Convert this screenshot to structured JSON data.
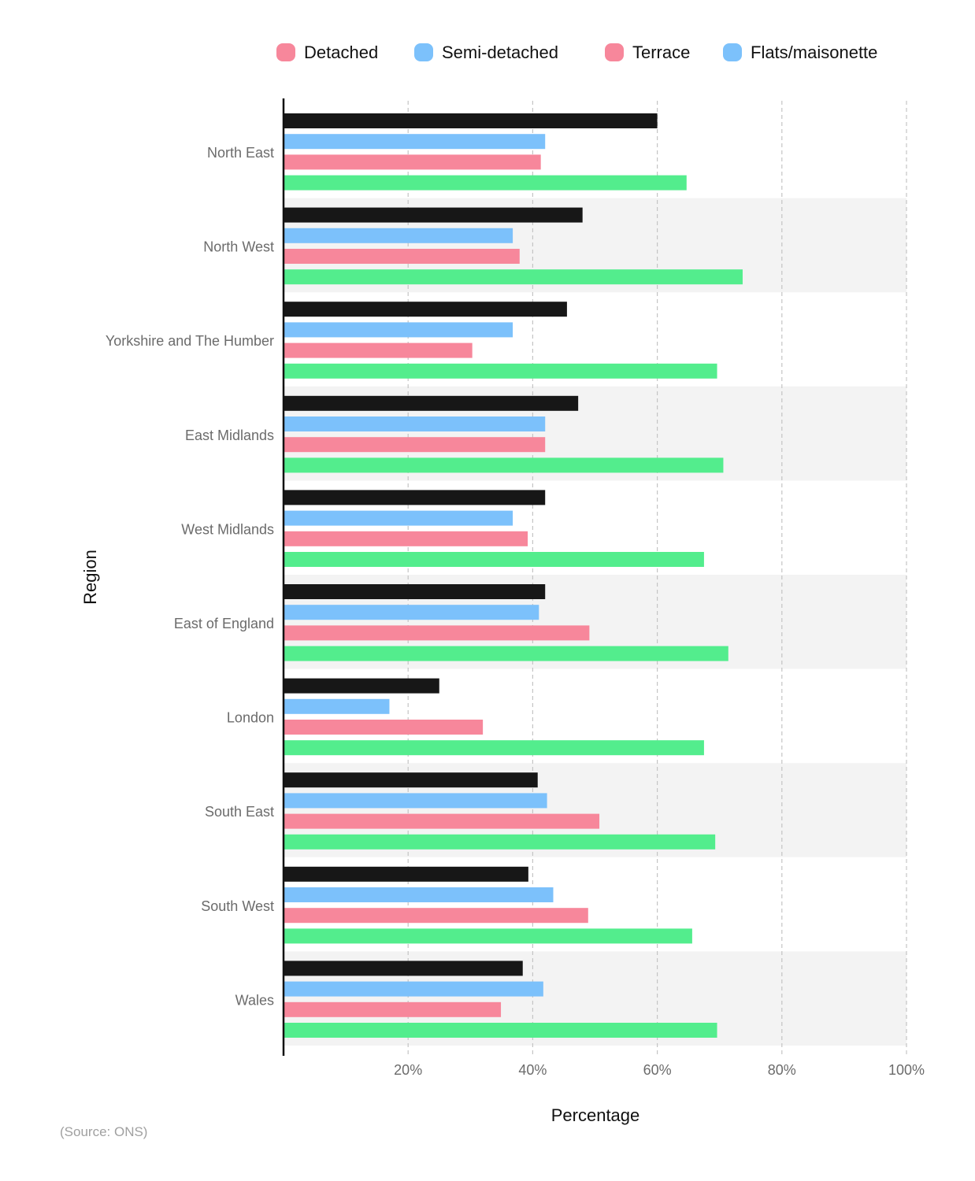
{
  "chart_data": {
    "type": "bar",
    "orientation": "horizontal",
    "xlabel": "Percentage",
    "ylabel": "Region",
    "xlim": [
      0,
      100
    ],
    "x_ticks": [
      "20%",
      "40%",
      "60%",
      "80%",
      "100%"
    ],
    "x_tick_values": [
      20,
      40,
      60,
      80,
      100
    ],
    "grid": "vertical dashed",
    "legend_position": "top",
    "categories": [
      "North East",
      "North West",
      "Yorkshire and The Humber",
      "East Midlands",
      "West Midlands",
      "East of England",
      "London",
      "South East",
      "South West",
      "Wales"
    ],
    "series": [
      {
        "name": "Detached",
        "bar_color": "#171717",
        "legend_color": "#f7879b",
        "values": [
          60,
          48,
          45.5,
          47.3,
          42,
          42,
          25,
          40.8,
          39.3,
          38.4
        ]
      },
      {
        "name": "Semi-detached",
        "bar_color": "#7cc1fb",
        "legend_color": "#7cc1fb",
        "values": [
          42,
          36.8,
          36.8,
          42,
          36.8,
          41,
          17,
          42.3,
          43.3,
          41.7
        ]
      },
      {
        "name": "Terrace",
        "bar_color": "#f7879b",
        "legend_color": "#f7879b",
        "values": [
          41.3,
          37.9,
          30.3,
          42,
          39.2,
          49.1,
          32,
          50.7,
          48.9,
          34.9
        ]
      },
      {
        "name": "Flats/maisonette",
        "bar_color": "#53ed8d",
        "legend_color": "#7cc1fb",
        "values": [
          64.7,
          73.7,
          69.6,
          70.6,
          67.5,
          71.4,
          67.5,
          69.3,
          65.6,
          69.6
        ]
      }
    ],
    "source": "(Source: ONS)"
  },
  "colors": {
    "band": "#f3f3f3",
    "grid": "#c4c4c4",
    "axis": "#111111"
  }
}
